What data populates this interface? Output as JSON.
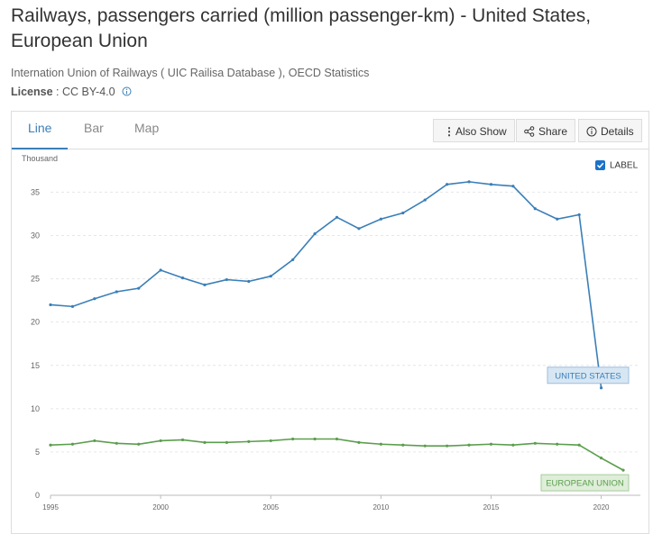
{
  "header": {
    "title": "Railways, passengers carried (million passenger-km) - United States, European Union",
    "source": "Internation Union of Railways ( UIC Railisa Database ), OECD Statistics",
    "license_label": "License",
    "license_value": ": CC BY-4.0"
  },
  "tabs": [
    "Line",
    "Bar",
    "Map"
  ],
  "buttons": [
    "Also Show",
    "Share",
    "Details"
  ],
  "label_toggle": "LABEL",
  "chart_data": {
    "type": "line",
    "y_unit_label": "Thousand",
    "x": [
      1995,
      1996,
      1997,
      1998,
      1999,
      2000,
      2001,
      2002,
      2003,
      2004,
      2005,
      2006,
      2007,
      2008,
      2009,
      2010,
      2011,
      2012,
      2013,
      2014,
      2015,
      2016,
      2017,
      2018,
      2019,
      2020,
      2021
    ],
    "series": [
      {
        "name": "UNITED STATES",
        "color": "#3a7fb8",
        "values": [
          22.0,
          21.8,
          22.7,
          23.5,
          23.9,
          26.0,
          25.1,
          24.3,
          24.9,
          24.7,
          25.3,
          27.2,
          30.2,
          32.1,
          30.8,
          31.9,
          32.6,
          34.1,
          35.9,
          36.2,
          35.9,
          35.7,
          33.1,
          31.9,
          32.4,
          12.4,
          null
        ]
      },
      {
        "name": "EUROPEAN UNION",
        "color": "#5b9e4d",
        "values": [
          5.8,
          5.9,
          6.3,
          6.0,
          5.9,
          6.3,
          6.4,
          6.1,
          6.1,
          6.2,
          6.3,
          6.5,
          6.5,
          6.5,
          6.1,
          5.9,
          5.8,
          5.7,
          5.7,
          5.8,
          5.9,
          5.8,
          6.0,
          5.9,
          5.8,
          4.3,
          2.9
        ]
      }
    ],
    "xlim": [
      1995,
      2021
    ],
    "xticks": [
      1995,
      2000,
      2005,
      2010,
      2015,
      2020
    ],
    "ylim": [
      0,
      36.5
    ],
    "yticks": [
      0,
      5,
      10,
      15,
      20,
      25,
      30,
      35
    ],
    "grid": true
  }
}
